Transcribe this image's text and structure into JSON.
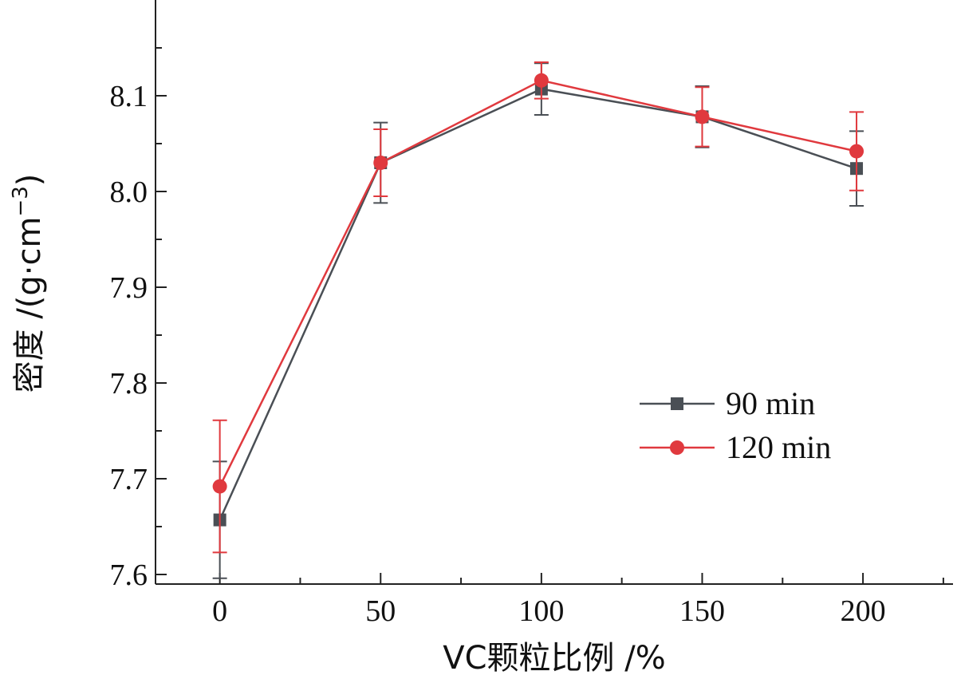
{
  "chart_data": {
    "type": "line",
    "xlabel": "VC颗粒比例 /%",
    "ylabel_main": "密度 /(g·cm",
    "ylabel_sup": "−3",
    "ylabel_close": ")",
    "x": [
      0,
      50,
      100,
      150,
      198
    ],
    "xticks": [
      0,
      50,
      100,
      150,
      200
    ],
    "xlim": [
      -20,
      228
    ],
    "ylim": [
      7.59,
      8.2
    ],
    "yticks": [
      7.6,
      7.7,
      7.8,
      7.9,
      8.0,
      8.1
    ],
    "ytick_labels": [
      "7.6",
      "7.7",
      "7.8",
      "7.9",
      "8.0",
      "8.1"
    ],
    "grid": false,
    "legend_position": "right-middle",
    "series": [
      {
        "name": "90 min",
        "marker": "square",
        "color": "#4a4f55",
        "values": [
          7.657,
          8.03,
          8.107,
          8.078,
          8.024
        ],
        "error": [
          0.061,
          0.042,
          0.027,
          0.032,
          0.039
        ]
      },
      {
        "name": "120 min",
        "marker": "circle",
        "color": "#e0393e",
        "values": [
          7.692,
          8.03,
          8.116,
          8.078,
          8.042
        ],
        "error": [
          0.069,
          0.035,
          0.019,
          0.031,
          0.041
        ]
      }
    ]
  }
}
